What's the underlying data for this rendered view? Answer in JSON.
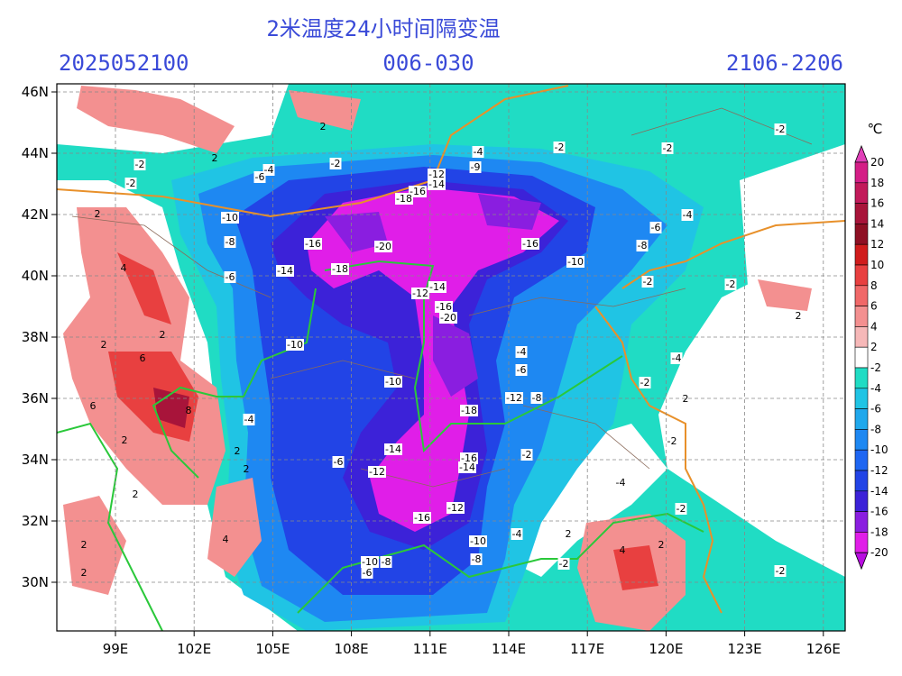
{
  "header": {
    "title": "2米温度24小时间隔变温",
    "init": "2025052100",
    "range": "006-030",
    "valid": "2106-2206"
  },
  "axes": {
    "lat_labels": [
      "46N",
      "44N",
      "42N",
      "40N",
      "38N",
      "36N",
      "34N",
      "32N",
      "30N"
    ],
    "lon_labels": [
      "99E",
      "102E",
      "105E",
      "108E",
      "111E",
      "114E",
      "117E",
      "120E",
      "123E",
      "126E"
    ]
  },
  "colorbar": {
    "unit": "℃",
    "levels": [
      20,
      18,
      16,
      14,
      12,
      10,
      8,
      6,
      4,
      2,
      -2,
      -4,
      -6,
      -8,
      -10,
      -12,
      -14,
      -16,
      -18,
      -20
    ],
    "colors": [
      "#e040b8",
      "#d41e86",
      "#c21a5a",
      "#a8143a",
      "#8e1024",
      "#d01c1c",
      "#e84040",
      "#f06868",
      "#f39090",
      "#f6b8b8",
      "#ffffff",
      "#20dcc4",
      "#20c4e4",
      "#20a8ec",
      "#1e88f2",
      "#1e66f2",
      "#2244e6",
      "#3c22d8",
      "#8a1ee0",
      "#e01ee8",
      "#b80ee0"
    ]
  },
  "contour_labels": [
    2,
    2,
    -2,
    -2,
    -2,
    -2,
    -2,
    -2,
    -4,
    -4,
    -6,
    -9,
    -12,
    -14,
    -16,
    -18,
    -10,
    -8,
    -16,
    -20,
    -18,
    -14,
    -6,
    -16,
    -6,
    -4,
    -8,
    -10,
    -12,
    -14,
    -16,
    -20,
    -10,
    -10,
    -18,
    -12,
    -8,
    -6,
    -4,
    -4,
    -2,
    -4,
    -2,
    -2,
    2,
    2,
    -2,
    -14,
    -12,
    -16,
    -14,
    -2,
    -6,
    -4,
    -2,
    -12,
    -16,
    -10,
    -8,
    -4,
    -8,
    -10,
    -6,
    -2,
    -2,
    2,
    4,
    2,
    2,
    4,
    2,
    2,
    6,
    8,
    6,
    2,
    2,
    2,
    4,
    2,
    2,
    2
  ]
}
